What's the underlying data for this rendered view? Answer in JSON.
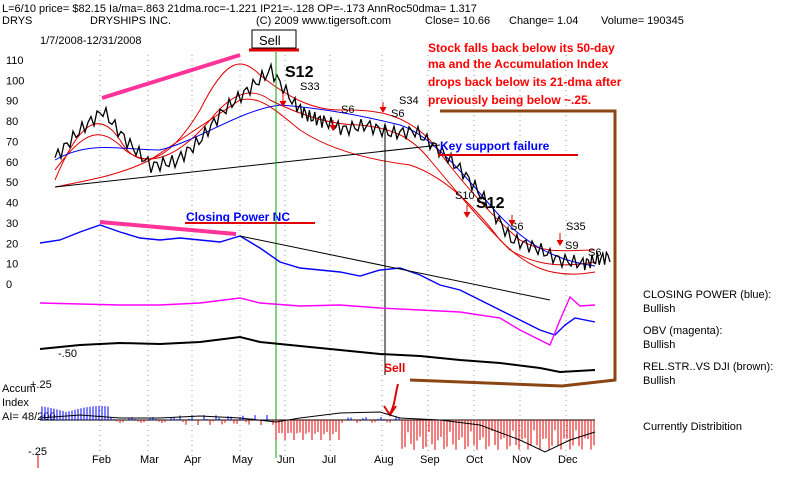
{
  "header": {
    "ticker": "DRYS",
    "name": "DRYSHIPS INC.",
    "copyright": "(C) 2009 www.tigersoft.com",
    "close": "Close=  10.66",
    "change": "Change= 1.04",
    "volume": "Volume= 190345",
    "stats": "L=6/10  price= $82.15  Ia/ma=.863 21dma.roc=-1.221  IP21=-.128  OP=-.173 AnnRoc50dma= 1.317",
    "date_range": "1/7/2008-12/31/2008"
  },
  "annotations": {
    "comment_lines": [
      "Stock falls back below its 50-day",
      "ma and the Accumulation Index",
      "drops back below its 21-dma after",
      "previously being below ~.25."
    ],
    "key_support": "Key support failure",
    "closing_power_nc": "Closing Power NC",
    "sell_box": "Sell",
    "sell_aug": "Sell",
    "s12_top": "S12",
    "s12_oct": "S12",
    "s33": "S33",
    "s6_a": "S6",
    "s34": "S34",
    "s6_b": "S6",
    "s10": "S10",
    "s6_c": "S6",
    "s35": "S35",
    "s9": "S9",
    "s6_d": "S6"
  },
  "legend": {
    "cp_title": "CLOSING POWER (blue):",
    "cp_value": "Bullish",
    "obv_title": "OBV (magenta):",
    "obv_value": "Bullish",
    "rs_title": "REL.STR..VS DJI (brown):",
    "rs_value": "Bullish",
    "accum_status": "Currently Distribition"
  },
  "accum_panel": {
    "title1": "Accum",
    "title2": "Index",
    "ai": "AI= 48/200",
    "upper": "+.25",
    "lower": "-.25"
  },
  "obv_label": "-.50",
  "colors": {
    "price": "#000000",
    "ma_red": "#e00000",
    "ma_blue": "#0000ff",
    "closing_power": "#0000ff",
    "obv": "#ff00ff",
    "rel_strength": "#000000",
    "annotation_red": "#ff0000",
    "annotation_pink": "#ff3399",
    "annotation_brown": "#8b4513",
    "signal_green": "#00aa00",
    "accum_pos": "#0000ff",
    "accum_neg": "#e00000"
  },
  "chart_data": {
    "type": "line",
    "x_ticks": [
      "Feb",
      "Mar",
      "Apr",
      "May",
      "Jun",
      "Jul",
      "Aug",
      "Sep",
      "Oct",
      "Nov",
      "Dec"
    ],
    "y_ticks": [
      110,
      100,
      90,
      80,
      70,
      60,
      50,
      40,
      30,
      20,
      10,
      0
    ],
    "ylim": [
      0,
      115
    ],
    "price_series": {
      "x": [
        0,
        0.5,
        1,
        1.5,
        2,
        2.5,
        3,
        3.5,
        4,
        4.5,
        5,
        5.3,
        5.6,
        6,
        6.5,
        7,
        7.5,
        8,
        8.5,
        9,
        9.5,
        10,
        10.5,
        11,
        11.3,
        11.6
      ],
      "y": [
        62,
        75,
        85,
        70,
        58,
        60,
        70,
        85,
        95,
        105,
        88,
        82,
        80,
        76,
        78,
        74,
        75,
        66,
        55,
        40,
        22,
        18,
        12,
        10,
        12,
        14
      ]
    }
  }
}
